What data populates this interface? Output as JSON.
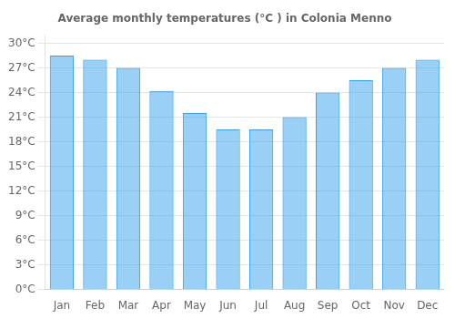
{
  "chart_data": {
    "type": "bar",
    "title": "Average monthly temperatures (°C ) in Colonia Menno",
    "categories": [
      "Jan",
      "Feb",
      "Mar",
      "Apr",
      "May",
      "Jun",
      "Jul",
      "Aug",
      "Sep",
      "Oct",
      "Nov",
      "Dec"
    ],
    "values": [
      28.5,
      28.0,
      27.0,
      24.2,
      21.5,
      19.5,
      19.5,
      21.0,
      24.0,
      25.5,
      27.0,
      28.0
    ],
    "ylim": [
      0,
      31
    ],
    "yticks": [
      {
        "value": 0,
        "label": "0°C"
      },
      {
        "value": 3,
        "label": "3°C"
      },
      {
        "value": 6,
        "label": "6°C"
      },
      {
        "value": 9,
        "label": "9°C"
      },
      {
        "value": 12,
        "label": "12°C"
      },
      {
        "value": 15,
        "label": "15°C"
      },
      {
        "value": 18,
        "label": "18°C"
      },
      {
        "value": 21,
        "label": "21°C"
      },
      {
        "value": 24,
        "label": "24°C"
      },
      {
        "value": 27,
        "label": "27°C"
      },
      {
        "value": 30,
        "label": "30°C"
      }
    ],
    "grid": true
  }
}
